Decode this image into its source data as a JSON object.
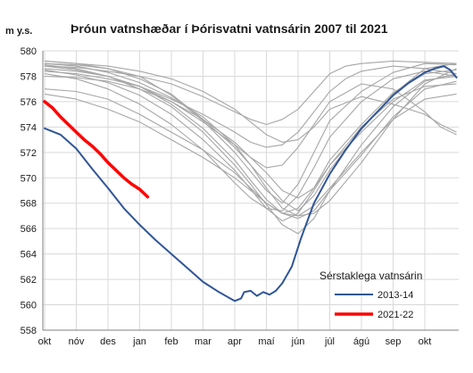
{
  "chart_data": {
    "type": "line",
    "title": "Þróun vatnshæðar í Þórisvatni vatnsárin 2007 til 2021",
    "ylabel": "m y.s.",
    "xlabel": "",
    "ylim": [
      558,
      580
    ],
    "yticks": [
      558,
      560,
      562,
      564,
      566,
      568,
      570,
      572,
      574,
      576,
      578,
      580
    ],
    "x_tick_labels": [
      "okt",
      "nóv",
      "des",
      "jan",
      "feb",
      "mar",
      "apr",
      "maí",
      "jún",
      "júl",
      "ágú",
      "sep",
      "okt"
    ],
    "x_unit": "months since 1 October (0 = okt, 12 = okt next year)",
    "xlim": [
      0,
      13
    ],
    "grid": true,
    "legend": {
      "title": "Sérstaklega vatnsárin",
      "placement": "bottom-right"
    },
    "highlight_series": [
      {
        "name": "2013-14",
        "color": "#2f5597",
        "x": [
          0,
          0.5,
          1,
          1.5,
          2,
          2.5,
          3,
          3.5,
          4,
          4.5,
          5,
          5.5,
          6,
          6.2,
          6.3,
          6.5,
          6.7,
          6.9,
          7.1,
          7.3,
          7.5,
          7.8,
          8.1,
          8.5,
          9,
          9.5,
          10,
          10.5,
          11,
          11.5,
          12,
          12.3,
          12.6,
          12.8,
          13
        ],
        "y": [
          573.9,
          573.4,
          572.3,
          570.7,
          569.2,
          567.6,
          566.3,
          565.1,
          564.0,
          562.9,
          561.8,
          561.0,
          560.3,
          560.5,
          561.0,
          561.1,
          560.7,
          561.0,
          560.8,
          561.1,
          561.7,
          563.0,
          565.3,
          568.0,
          570.3,
          572.2,
          573.9,
          575.2,
          576.5,
          577.5,
          578.3,
          578.6,
          578.8,
          578.5,
          577.9
        ]
      },
      {
        "name": "2021-22",
        "color": "#ff0000",
        "x": [
          0,
          0.25,
          0.5,
          0.75,
          1,
          1.25,
          1.5,
          1.75,
          2,
          2.25,
          2.5,
          2.75,
          3,
          3.25
        ],
        "y": [
          576.0,
          575.5,
          574.8,
          574.2,
          573.6,
          573.0,
          572.5,
          571.9,
          571.2,
          570.6,
          570.0,
          569.5,
          569.1,
          568.5
        ]
      }
    ],
    "background_series_color": "#a6a6a6",
    "background_series": [
      {
        "x": [
          0,
          1,
          2,
          3,
          4,
          5,
          6,
          6.5,
          7,
          7.5,
          8,
          8.5,
          9,
          10,
          11,
          12,
          13
        ],
        "y": [
          579.0,
          578.9,
          578.6,
          578.0,
          576.5,
          574.5,
          572.0,
          570.5,
          569.0,
          568.0,
          569.5,
          572.0,
          574.5,
          576.8,
          578.3,
          579.0,
          578.9
        ]
      },
      {
        "x": [
          0,
          1,
          2,
          3,
          4,
          5,
          6,
          6.5,
          7,
          7.5,
          8,
          8.5,
          9,
          10,
          11,
          12,
          13
        ],
        "y": [
          578.8,
          578.5,
          578.0,
          577.2,
          575.8,
          573.9,
          571.4,
          569.8,
          568.3,
          567.2,
          567.6,
          569.2,
          571.4,
          574.2,
          576.7,
          578.2,
          578.5
        ]
      },
      {
        "x": [
          0,
          1,
          2,
          3,
          4,
          5,
          6,
          6.5,
          7,
          7.5,
          8,
          8.5,
          9,
          10,
          11,
          12,
          13
        ],
        "y": [
          578.5,
          578.1,
          577.5,
          576.5,
          575.0,
          573.0,
          570.6,
          569.1,
          567.6,
          566.6,
          567.2,
          569.0,
          571.0,
          573.6,
          576.0,
          577.7,
          578.0
        ]
      },
      {
        "x": [
          0,
          1,
          2,
          3,
          4,
          5,
          6,
          6.5,
          7,
          7.5,
          8,
          8.5,
          9,
          10,
          11,
          12,
          13
        ],
        "y": [
          578.9,
          578.6,
          578.0,
          577.0,
          575.6,
          573.6,
          571.0,
          569.5,
          567.9,
          566.3,
          565.6,
          566.8,
          569.0,
          572.6,
          575.6,
          577.6,
          578.2
        ]
      },
      {
        "x": [
          0,
          1,
          2,
          3,
          4,
          5,
          6,
          6.5,
          7,
          7.5,
          8,
          8.5,
          9,
          10,
          11,
          12,
          13
        ],
        "y": [
          577.0,
          576.8,
          576.2,
          575.0,
          573.6,
          572.2,
          570.4,
          569.2,
          568.0,
          567.2,
          566.8,
          567.4,
          569.0,
          571.8,
          574.8,
          577.0,
          577.6
        ]
      },
      {
        "x": [
          0,
          1,
          2,
          3,
          4,
          5,
          6,
          6.5,
          7,
          7.5,
          8,
          8.5,
          9,
          10,
          11,
          12,
          13
        ],
        "y": [
          579.2,
          579.0,
          578.6,
          577.8,
          576.6,
          574.6,
          572.4,
          571.0,
          569.6,
          568.2,
          567.4,
          568.6,
          570.6,
          573.8,
          576.6,
          578.6,
          579.0
        ]
      },
      {
        "x": [
          0,
          1,
          2,
          3,
          4,
          5,
          6,
          6.5,
          7,
          7.5,
          8,
          8.5,
          9,
          10,
          11,
          12,
          13
        ],
        "y": [
          578.0,
          577.9,
          577.6,
          577.0,
          576.0,
          574.6,
          572.8,
          571.6,
          570.4,
          569.0,
          568.4,
          569.2,
          571.0,
          574.0,
          576.2,
          577.2,
          577.4
        ]
      },
      {
        "x": [
          0,
          1,
          2,
          3,
          4,
          5,
          6,
          6.5,
          7,
          7.5,
          8,
          8.5,
          9,
          10,
          11,
          12,
          13
        ],
        "y": [
          576.6,
          576.2,
          575.4,
          574.4,
          573.0,
          571.6,
          570.0,
          569.0,
          568.0,
          567.2,
          567.0,
          567.8,
          569.2,
          572.0,
          574.6,
          576.2,
          576.6
        ]
      },
      {
        "x": [
          0,
          1,
          2,
          3,
          4,
          5,
          6,
          6.5,
          7,
          7.5,
          8,
          8.5,
          9,
          10,
          11,
          12,
          13
        ],
        "y": [
          579.0,
          578.8,
          578.3,
          577.5,
          576.3,
          574.8,
          572.6,
          571.0,
          569.2,
          567.6,
          567.0,
          567.2,
          568.2,
          571.2,
          574.6,
          577.4,
          578.6
        ]
      },
      {
        "x": [
          0,
          1,
          2,
          3,
          4,
          5,
          6,
          6.5,
          7,
          7.5,
          8,
          8.5,
          9,
          9.5,
          10,
          11,
          12,
          13
        ],
        "y": [
          578.8,
          578.7,
          578.4,
          578.0,
          577.4,
          576.4,
          575.2,
          574.6,
          574.2,
          574.6,
          575.4,
          576.8,
          578.2,
          578.8,
          579.0,
          579.2,
          579.1,
          579.0
        ]
      },
      {
        "x": [
          0,
          1,
          2,
          3,
          4,
          5,
          6,
          6.5,
          7,
          7.5,
          8,
          8.5,
          9,
          9.5,
          10,
          11,
          12,
          13
        ],
        "y": [
          578.4,
          578.2,
          577.8,
          577.2,
          576.2,
          575.0,
          573.6,
          572.8,
          572.4,
          572.6,
          573.6,
          575.2,
          576.8,
          577.8,
          578.4,
          578.8,
          578.6,
          578.2
        ]
      },
      {
        "x": [
          0,
          1,
          2,
          3,
          4,
          5,
          6,
          6.5,
          7,
          7.5,
          8,
          8.5,
          9,
          10,
          11,
          12,
          12.5,
          13
        ],
        "y": [
          578.6,
          578.4,
          578.0,
          577.2,
          576.0,
          574.4,
          572.6,
          571.6,
          570.8,
          571.0,
          572.4,
          574.2,
          576.0,
          577.4,
          577.0,
          575.2,
          574.0,
          573.4
        ]
      },
      {
        "x": [
          0,
          1,
          2,
          3,
          4,
          5,
          6,
          6.5,
          7,
          7.5,
          8,
          8.5,
          9,
          10,
          11,
          12,
          12.5,
          13
        ],
        "y": [
          579.2,
          579.0,
          578.8,
          578.4,
          577.8,
          576.8,
          575.4,
          574.4,
          573.4,
          572.8,
          573.0,
          574.0,
          575.4,
          576.4,
          575.8,
          575.0,
          574.2,
          573.6
        ]
      },
      {
        "x": [
          0,
          1,
          2,
          3,
          4,
          5,
          6,
          6.5,
          7,
          7.5,
          8,
          8.5,
          9,
          10,
          11,
          12,
          13
        ],
        "y": [
          578.2,
          577.8,
          577.0,
          575.8,
          574.2,
          572.2,
          569.6,
          568.4,
          567.6,
          567.4,
          568.6,
          570.8,
          573.2,
          576.0,
          577.8,
          578.4,
          578.0
        ]
      }
    ]
  }
}
